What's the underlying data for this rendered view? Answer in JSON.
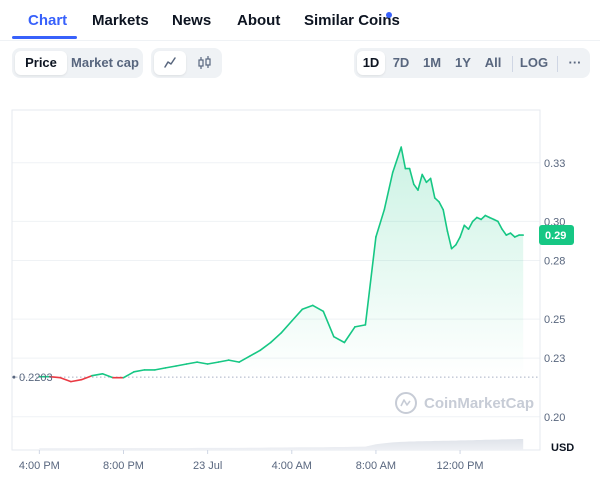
{
  "tabs": [
    {
      "label": "Chart",
      "active": true
    },
    {
      "label": "Markets"
    },
    {
      "label": "News"
    },
    {
      "label": "About"
    },
    {
      "label": "Similar Coins",
      "has_dot": true
    }
  ],
  "toolbar": {
    "type_toggle": [
      "Price",
      "Market cap"
    ],
    "type_selected": "Price",
    "view_icons": [
      "line-chart-icon",
      "candlestick-icon"
    ],
    "ranges": [
      "1D",
      "7D",
      "1M",
      "1Y",
      "All"
    ],
    "range_selected": "1D",
    "log_label": "LOG",
    "more_label": "···"
  },
  "colors": {
    "up": "#16c784",
    "down": "#ea3943",
    "accent": "#3861fb"
  },
  "chart_data": {
    "type": "line",
    "open_price": 0.2203,
    "open_price_label": "0.2203",
    "current_price_label": "0.29",
    "y_ticks": [
      0.33,
      0.3,
      0.28,
      0.25,
      0.23,
      0.2
    ],
    "y_tick_labels": [
      "0.33",
      "0.30",
      "0.28",
      "0.25",
      "0.23",
      "0.20"
    ],
    "ylim": [
      0.183,
      0.357
    ],
    "x_ticks": [
      0,
      4,
      8,
      12,
      16,
      20
    ],
    "x_tick_labels": [
      "4:00 PM",
      "8:00 PM",
      "23 Jul",
      "4:00 AM",
      "8:00 AM",
      "12:00 PM"
    ],
    "xlim": [
      -1.3,
      23.8
    ],
    "currency_label": "USD",
    "watermark": "CoinMarketCap",
    "x": [
      0,
      0.5,
      1,
      1.5,
      2,
      2.5,
      3,
      3.5,
      4,
      4.5,
      5,
      5.5,
      6,
      6.5,
      7,
      7.5,
      8,
      8.5,
      9,
      9.5,
      10,
      10.5,
      11,
      11.5,
      12,
      12.5,
      13,
      13.5,
      14,
      14.5,
      15,
      15.5,
      16,
      16.4,
      16.8,
      17.2,
      17.4,
      17.6,
      17.8,
      18,
      18.2,
      18.4,
      18.6,
      18.8,
      19,
      19.2,
      19.4,
      19.6,
      19.8,
      20,
      20.2,
      20.4,
      20.6,
      20.8,
      21,
      21.2,
      21.4,
      21.6,
      21.8,
      22,
      22.2,
      22.4,
      22.6,
      22.8,
      23
    ],
    "y": [
      0.2205,
      0.2205,
      0.22,
      0.218,
      0.219,
      0.221,
      0.222,
      0.22,
      0.22,
      0.223,
      0.224,
      0.224,
      0.225,
      0.226,
      0.227,
      0.228,
      0.227,
      0.228,
      0.229,
      0.228,
      0.231,
      0.234,
      0.238,
      0.243,
      0.249,
      0.255,
      0.257,
      0.254,
      0.241,
      0.238,
      0.246,
      0.247,
      0.292,
      0.306,
      0.325,
      0.338,
      0.327,
      0.327,
      0.319,
      0.316,
      0.324,
      0.32,
      0.322,
      0.312,
      0.31,
      0.306,
      0.295,
      0.286,
      0.288,
      0.292,
      0.298,
      0.296,
      0.3,
      0.302,
      0.301,
      0.303,
      0.302,
      0.301,
      0.3,
      0.296,
      0.293,
      0.294,
      0.292,
      0.293,
      0.293
    ],
    "volume": [
      0.9,
      0.9,
      0.9,
      0.9,
      0.9,
      0.9,
      1.0,
      1.0,
      1.0,
      1.0,
      1.0,
      1.0,
      1.0,
      1.0,
      1.0,
      1.1,
      1.1,
      1.1,
      1.1,
      1.1,
      1.2,
      1.2,
      1.3,
      1.3,
      1.4,
      1.5,
      1.5,
      1.5,
      1.6,
      1.6,
      1.7,
      1.8,
      3.0,
      3.6,
      4.0,
      4.3,
      4.4,
      4.5,
      4.5,
      4.6,
      4.6,
      4.7,
      4.7,
      4.8,
      4.8,
      4.9,
      4.9,
      5.0,
      5.0,
      5.1,
      5.1,
      5.2,
      5.2,
      5.3,
      5.3,
      5.4,
      5.4,
      5.5,
      5.5,
      5.6,
      5.6,
      5.7,
      5.7,
      5.8,
      5.8
    ]
  }
}
